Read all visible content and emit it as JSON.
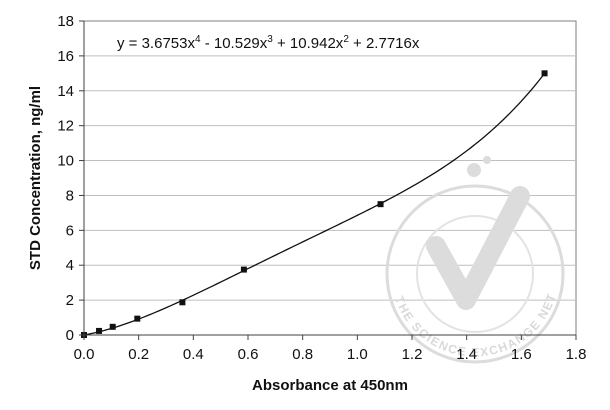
{
  "chart_data": {
    "type": "scatter",
    "title": "",
    "xlabel": "Absorbance at 450nm",
    "ylabel": "STD Concentration, ng/ml",
    "xlim": [
      0,
      1.8
    ],
    "ylim": [
      0,
      18
    ],
    "x_ticks": [
      0.0,
      0.2,
      0.4,
      0.6,
      0.8,
      1.0,
      1.2,
      1.4,
      1.6,
      1.8
    ],
    "x_tick_labels": [
      "0.0",
      "0.2",
      "0.4",
      "0.6",
      "0.8",
      "1.0",
      "1.2",
      "1.4",
      "1.6",
      "1.8"
    ],
    "y_ticks": [
      0,
      2,
      4,
      6,
      8,
      10,
      12,
      14,
      16,
      18
    ],
    "y_tick_labels": [
      "0",
      "2",
      "4",
      "6",
      "8",
      "10",
      "12",
      "14",
      "16",
      "18"
    ],
    "grid": "horizontal",
    "series": [
      {
        "x": [
          0.0,
          0.055,
          0.105,
          0.195,
          0.36,
          0.585,
          1.085,
          1.685
        ],
        "y": [
          0.0,
          0.234,
          0.469,
          0.938,
          1.875,
          3.75,
          7.5,
          15.0
        ],
        "marker": "square",
        "color": "#111111"
      }
    ],
    "fit": {
      "type": "polynomial",
      "coefficients": {
        "x4": 3.6753,
        "x3": -10.529,
        "x2": 10.942,
        "x1": 2.7716,
        "x0": 0
      },
      "x_range": [
        0,
        1.685
      ],
      "color": "#111111"
    },
    "equation": {
      "prefix": "y = 3.6753x",
      "exp1": "4",
      "part2": " - 10.529x",
      "exp2": "3",
      "part3": " + 10.942x",
      "exp3": "2",
      "part4": " + 2.7716x"
    },
    "watermark": {
      "text": "THE SCIENCE EXCHANGE NETWORK",
      "color": "#d7d7d7"
    }
  }
}
